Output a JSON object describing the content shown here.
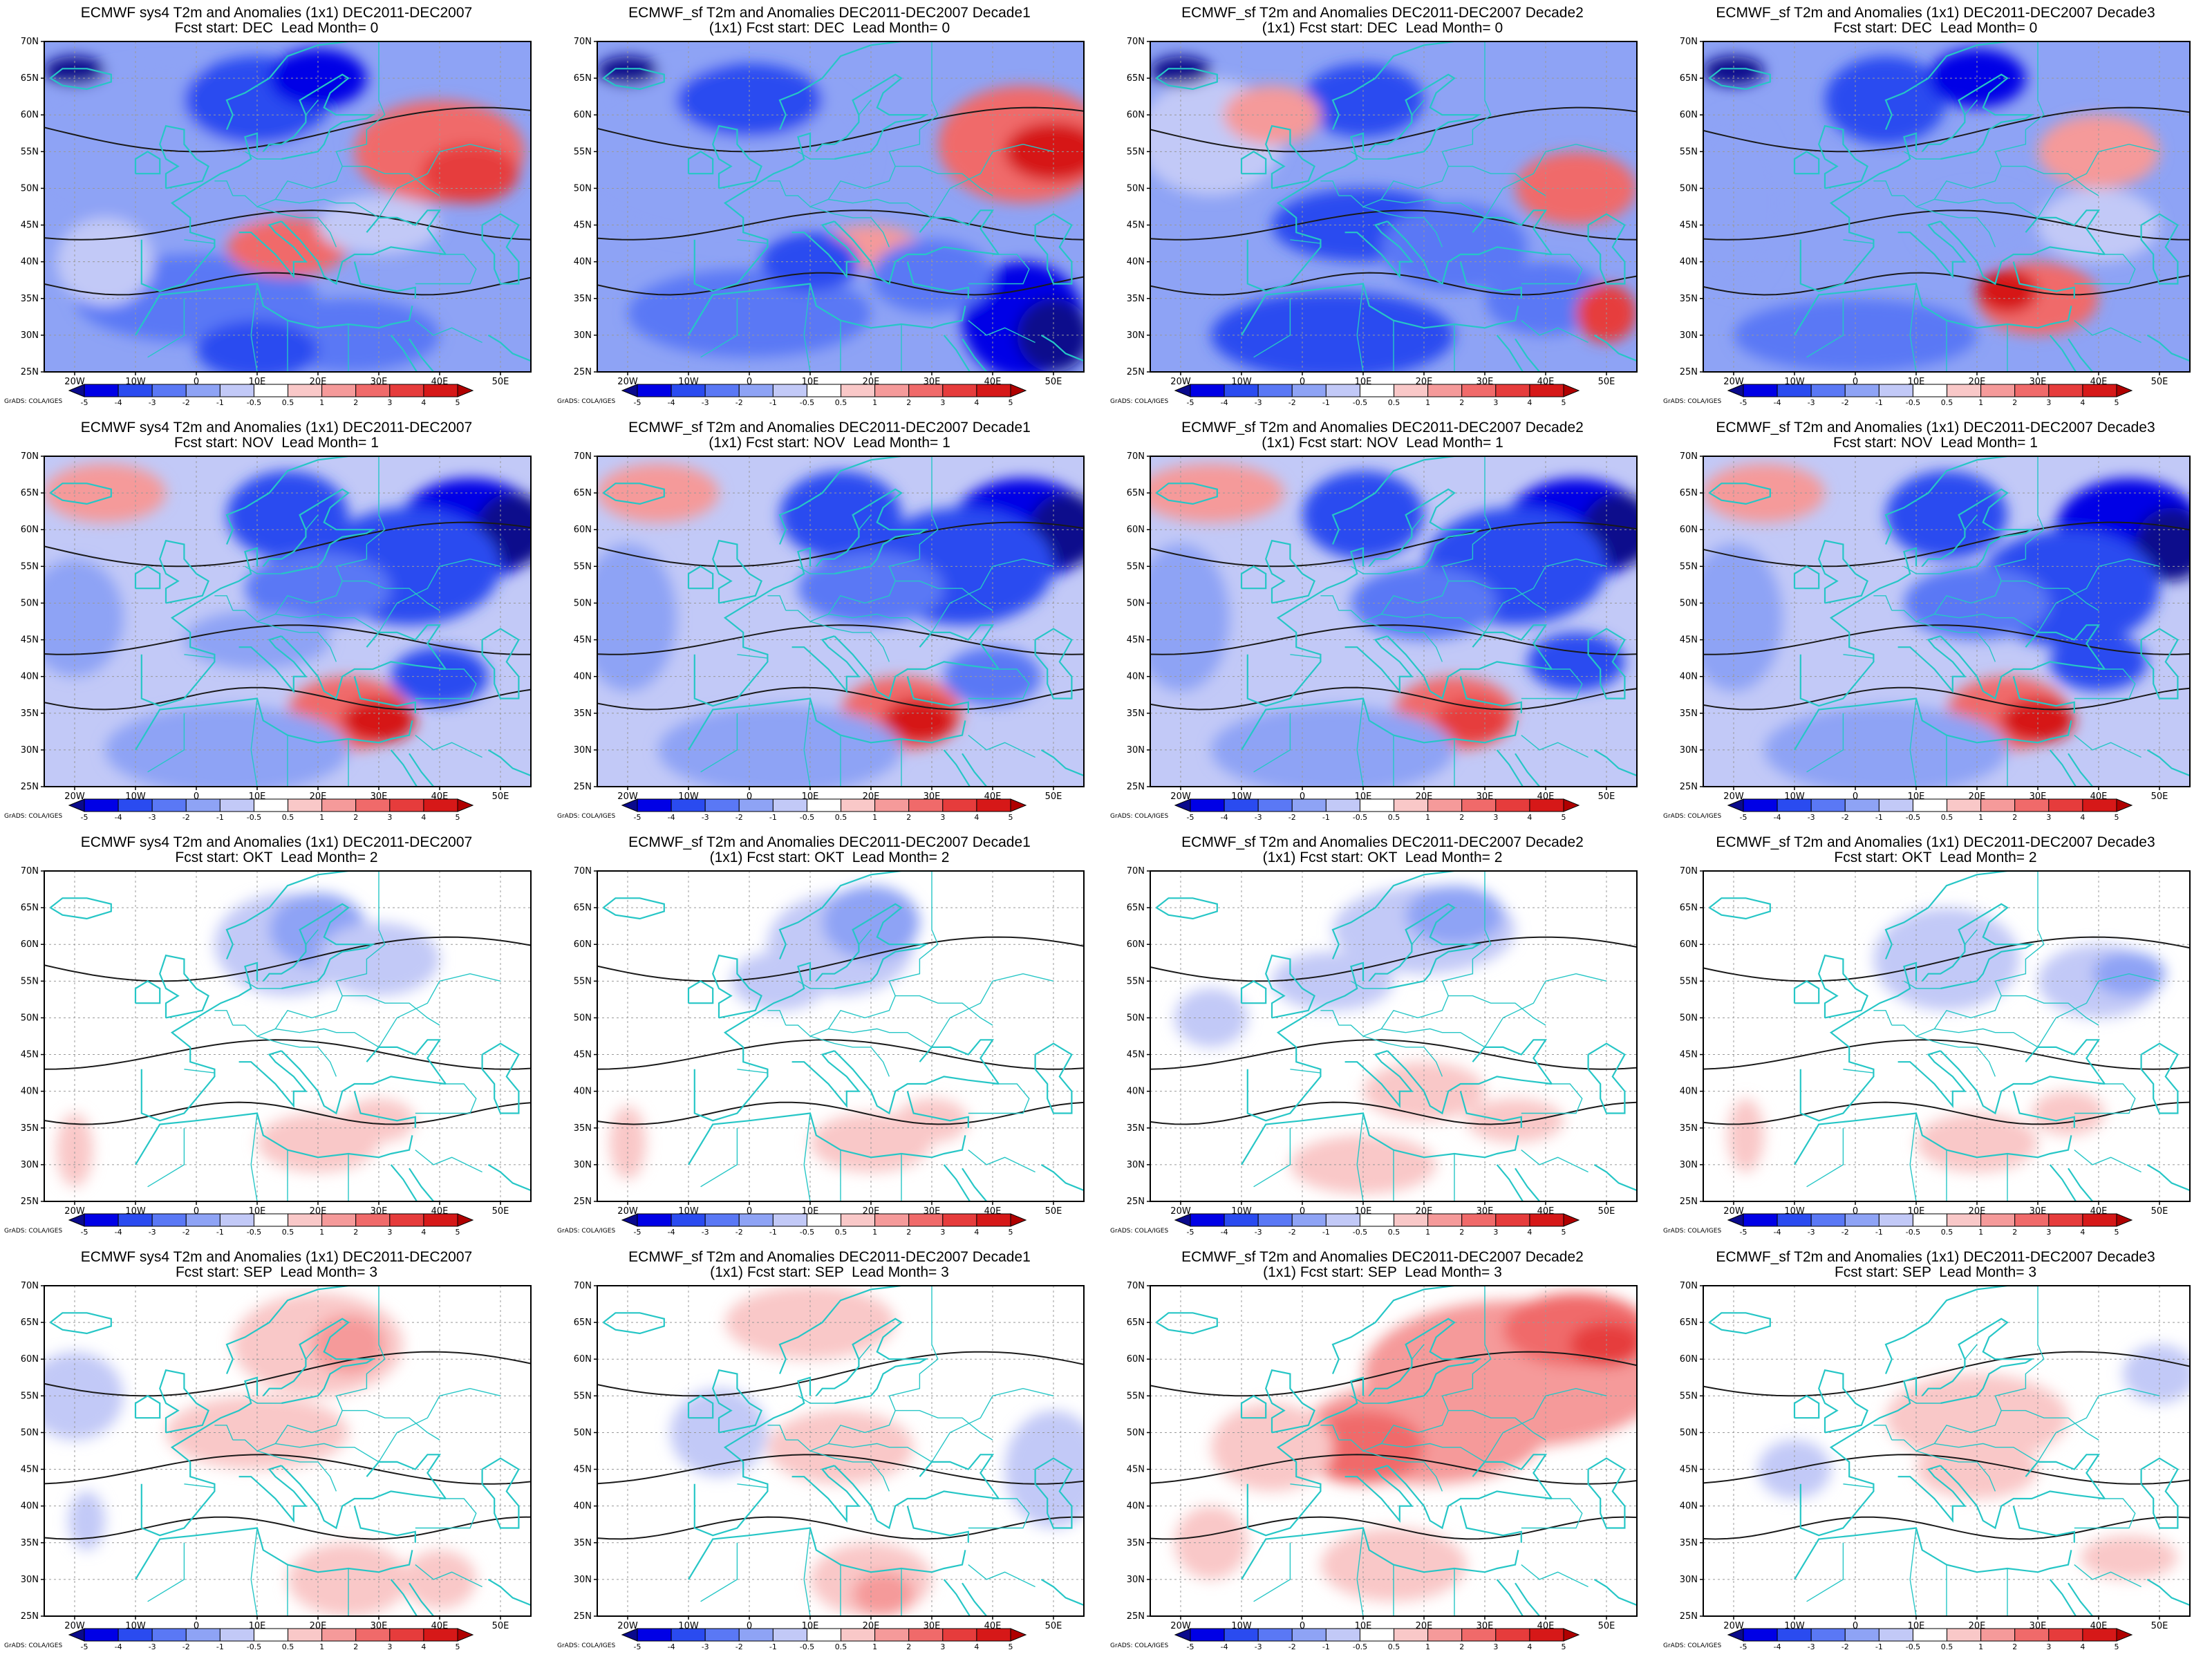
{
  "colors": {
    "coast": "#26c6c6",
    "contour": "#1a1a1a",
    "background": "#ffffff",
    "axis": "#000000"
  },
  "colorbar": {
    "levels": [
      "-5",
      "-4",
      "-3",
      "-2",
      "-1",
      "-0.5",
      "0.5",
      "1",
      "2",
      "3",
      "4",
      "5"
    ],
    "colors": [
      "#0a0a8c",
      "#0000e6",
      "#2a4bf0",
      "#5a78f5",
      "#8ea3f5",
      "#c2c9f7",
      "#ffffff",
      "#f9c8c8",
      "#f59a9a",
      "#f06a6a",
      "#e63c3c",
      "#d61818",
      "#b00000"
    ]
  },
  "axes": {
    "lon_labels": [
      "20W",
      "10W",
      "0",
      "10E",
      "20E",
      "30E",
      "40E",
      "50E"
    ],
    "lat_labels": [
      "25N",
      "30N",
      "35N",
      "40N",
      "45N",
      "50N",
      "55N",
      "60N",
      "65N",
      "70N"
    ]
  },
  "grads_label": "GrADS: COLA/IGES",
  "panels": [
    {
      "title_line1": "ECMWF sys4 T2m and Anomalies (1x1) DEC2011-DEC2007",
      "title_line2": "Fcst start: DEC  Lead Month= 0",
      "scene": "dec_sys4"
    },
    {
      "title_line1": "ECMWF_sf T2m and Anomalies DEC2011-DEC2007 Decade1",
      "title_line2": "(1x1) Fcst start: DEC  Lead Month= 0",
      "scene": "dec_d1"
    },
    {
      "title_line1": "ECMWF_sf T2m and Anomalies DEC2011-DEC2007 Decade2",
      "title_line2": "(1x1) Fcst start: DEC  Lead Month= 0",
      "scene": "dec_d2"
    },
    {
      "title_line1": "ECMWF_sf T2m and Anomalies (1x1) DEC2011-DEC2007 Decade3",
      "title_line2": "Fcst start: DEC  Lead Month= 0",
      "scene": "dec_d3"
    },
    {
      "title_line1": "ECMWF sys4 T2m and Anomalies (1x1) DEC2011-DEC2007",
      "title_line2": "Fcst start: NOV  Lead Month= 1",
      "scene": "nov_sys4"
    },
    {
      "title_line1": "ECMWF_sf T2m and Anomalies DEC2011-DEC2007 Decade1",
      "title_line2": "(1x1) Fcst start: NOV  Lead Month= 1",
      "scene": "nov_d1"
    },
    {
      "title_line1": "ECMWF_sf T2m and Anomalies DEC2011-DEC2007 Decade2",
      "title_line2": "(1x1) Fcst start: NOV  Lead Month= 1",
      "scene": "nov_d2"
    },
    {
      "title_line1": "ECMWF_sf T2m and Anomalies (1x1) DEC2011-DEC2007 Decade3",
      "title_line2": "Fcst start: NOV  Lead Month= 1",
      "scene": "nov_d3"
    },
    {
      "title_line1": "ECMWF sys4 T2m and Anomalies (1x1) DEC2011-DEC2007",
      "title_line2": "Fcst start: OKT  Lead Month= 2",
      "scene": "okt_sys4"
    },
    {
      "title_line1": "ECMWF_sf T2m and Anomalies DEC2011-DEC2007 Decade1",
      "title_line2": "(1x1) Fcst start: OKT  Lead Month= 2",
      "scene": "okt_d1"
    },
    {
      "title_line1": "ECMWF_sf T2m and Anomalies DEC2011-DEC2007 Decade2",
      "title_line2": "(1x1) Fcst start: OKT  Lead Month= 2",
      "scene": "okt_d2"
    },
    {
      "title_line1": "ECMWF_sf T2m and Anomalies (1x1) DEC2011-DEC2007 Decade3",
      "title_line2": "Fcst start: OKT  Lead Month= 2",
      "scene": "okt_d3"
    },
    {
      "title_line1": "ECMWF sys4 T2m and Anomalies (1x1) DEC2011-DEC2007",
      "title_line2": "Fcst start: SEP  Lead Month= 3",
      "scene": "sep_sys4"
    },
    {
      "title_line1": "ECMWF_sf T2m and Anomalies DEC2011-DEC2007 Decade1",
      "title_line2": "(1x1) Fcst start: SEP  Lead Month= 3",
      "scene": "sep_d1"
    },
    {
      "title_line1": "ECMWF_sf T2m and Anomalies DEC2011-DEC2007 Decade2",
      "title_line2": "(1x1) Fcst start: SEP  Lead Month= 3",
      "scene": "sep_d2"
    },
    {
      "title_line1": "ECMWF_sf T2m and Anomalies (1x1) DEC2011-DEC2007 Decade3",
      "title_line2": "Fcst start: SEP  Lead Month= 3",
      "scene": "sep_d3"
    }
  ]
}
